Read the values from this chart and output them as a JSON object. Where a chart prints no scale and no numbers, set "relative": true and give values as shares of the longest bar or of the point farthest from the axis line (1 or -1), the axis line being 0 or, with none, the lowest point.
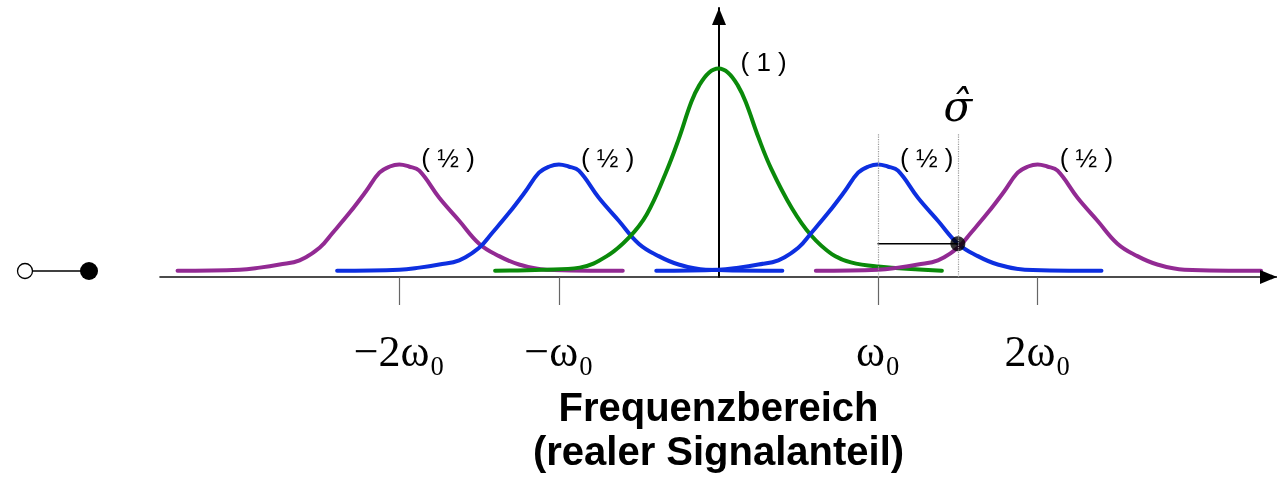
{
  "chart_data": {
    "type": "line",
    "relative": true,
    "xlabel": "Frequenzbereich\n(realer Signalanteil)",
    "xlim": [
      -3.5,
      3.5
    ],
    "xticks": [
      {
        "value": -2,
        "label": "−2ω₀"
      },
      {
        "value": -1,
        "label": "−ω₀"
      },
      {
        "value": 1,
        "label": "ω₀"
      },
      {
        "value": 2,
        "label": "2ω₀"
      }
    ],
    "tick_labels": "x",
    "series": [
      {
        "color": "#922a93",
        "x": [
          -3.39,
          -3,
          -2.875,
          -2.75,
          -2.625,
          -2.5,
          -2.42,
          -2.31,
          -2.21,
          -2.125,
          -2.06,
          -2,
          -1.94,
          -1.875,
          -1.75,
          -1.625,
          -1.5,
          -1.375,
          -1.25,
          -1.08,
          -0.6
        ],
        "values": [
          0.03,
          0.035,
          0.045,
          0.06,
          0.08,
          0.14,
          0.21,
          0.31,
          0.41,
          0.5,
          0.53,
          0.54,
          0.53,
          0.51,
          0.38,
          0.27,
          0.16,
          0.1,
          0.06,
          0.035,
          0.03
        ]
      },
      {
        "color": "#0d2fe0",
        "x": [
          -2.39,
          -2,
          -1.875,
          -1.75,
          -1.625,
          -1.5,
          -1.42,
          -1.31,
          -1.21,
          -1.125,
          -1.06,
          -1,
          -0.94,
          -0.875,
          -0.75,
          -0.625,
          -0.5,
          -0.375,
          -0.25,
          -0.08,
          0.4
        ],
        "values": [
          0.03,
          0.035,
          0.045,
          0.06,
          0.08,
          0.14,
          0.21,
          0.31,
          0.41,
          0.5,
          0.53,
          0.54,
          0.53,
          0.51,
          0.38,
          0.27,
          0.16,
          0.1,
          0.06,
          0.035,
          0.03
        ]
      },
      {
        "color": "#0a8a0a",
        "x": [
          -1.4,
          -1.1,
          -0.87,
          -0.7,
          -0.56,
          -0.45,
          -0.33,
          -0.25,
          -0.17,
          -0.12,
          -0.06,
          0,
          0.06,
          0.12,
          0.17,
          0.25,
          0.33,
          0.46,
          0.58,
          0.71,
          0.83,
          1.0,
          1.4
        ],
        "values": [
          0.03,
          0.035,
          0.045,
          0.1,
          0.19,
          0.3,
          0.5,
          0.66,
          0.84,
          0.92,
          0.98,
          1,
          0.98,
          0.92,
          0.84,
          0.67,
          0.52,
          0.33,
          0.2,
          0.11,
          0.07,
          0.05,
          0.03
        ]
      },
      {
        "color": "#0d2fe0",
        "x": [
          -0.39,
          0,
          0.125,
          0.25,
          0.375,
          0.5,
          0.58,
          0.69,
          0.79,
          0.875,
          0.94,
          1,
          1.06,
          1.125,
          1.25,
          1.375,
          1.5,
          1.625,
          1.75,
          1.92,
          2.4
        ],
        "values": [
          0.03,
          0.035,
          0.045,
          0.06,
          0.08,
          0.14,
          0.21,
          0.31,
          0.41,
          0.5,
          0.53,
          0.54,
          0.53,
          0.51,
          0.38,
          0.27,
          0.16,
          0.1,
          0.06,
          0.035,
          0.03
        ]
      },
      {
        "color": "#922a93",
        "x": [
          0.61,
          1,
          1.125,
          1.25,
          1.375,
          1.5,
          1.58,
          1.69,
          1.79,
          1.875,
          1.94,
          2,
          2.06,
          2.125,
          2.25,
          2.375,
          2.5,
          2.625,
          2.75,
          2.92,
          3.4
        ],
        "values": [
          0.03,
          0.035,
          0.045,
          0.06,
          0.08,
          0.14,
          0.21,
          0.31,
          0.41,
          0.5,
          0.53,
          0.54,
          0.53,
          0.51,
          0.38,
          0.27,
          0.16,
          0.1,
          0.06,
          0.035,
          0.03
        ]
      },
      {
        "color": "#000000",
        "x": [
          1,
          1.5
        ],
        "values": [
          0.16,
          0.16
        ]
      },
      {
        "type": "scatter",
        "color": "#000000",
        "marker": "circle",
        "x": [
          1.5
        ],
        "values": [
          0.16
        ]
      }
    ],
    "ref_lines": [
      {
        "axis": "x",
        "value": 1,
        "color": "#9a9a9a",
        "line_style": "dotted"
      },
      {
        "axis": "x",
        "value": 1.5,
        "label": "σ̂",
        "color": "#9a9a9a",
        "line_style": "dotted"
      }
    ],
    "annotations": [
      {
        "text": "( ½ )",
        "x": -2,
        "y": 0.54
      },
      {
        "text": "( ½ )",
        "x": -1,
        "y": 0.54
      },
      {
        "text": "( 1 )",
        "x": 0,
        "y": 1
      },
      {
        "text": "( ½ )",
        "x": 1,
        "y": 0.54
      },
      {
        "text": "( ½ )",
        "x": 2,
        "y": 0.54
      }
    ]
  }
}
